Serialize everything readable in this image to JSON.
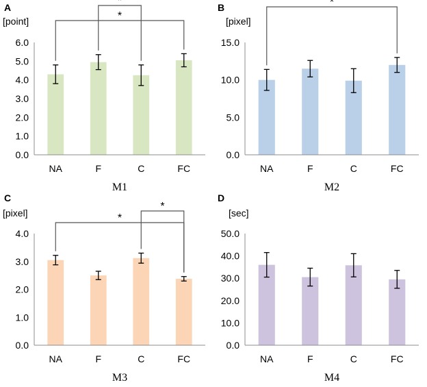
{
  "chart_data": [
    {
      "type": "bar",
      "panel": "A",
      "title": "M1",
      "ylabel": "[point]",
      "ylim": [
        0,
        6
      ],
      "yticks": [
        "0.0",
        "1.0",
        "2.0",
        "3.0",
        "4.0",
        "5.0",
        "6.0"
      ],
      "categories": [
        "NA",
        "F",
        "C",
        "FC"
      ],
      "values": [
        4.3,
        4.95,
        4.25,
        5.05
      ],
      "errors": [
        0.5,
        0.4,
        0.55,
        0.35
      ],
      "color": "#d9e6c2",
      "significance": [
        {
          "from": "NA",
          "to": "FC",
          "label": "*"
        },
        {
          "from": "F",
          "to": "C",
          "label": "*"
        }
      ]
    },
    {
      "type": "bar",
      "panel": "B",
      "title": "M2",
      "ylabel": "[pixel]",
      "ylim": [
        0,
        15
      ],
      "yticks": [
        "0.0",
        "5.0",
        "10.0",
        "15.0"
      ],
      "categories": [
        "NA",
        "F",
        "C",
        "FC"
      ],
      "values": [
        10.0,
        11.5,
        9.9,
        12.0
      ],
      "errors": [
        1.4,
        1.1,
        1.6,
        1.0
      ],
      "color": "#b9d0e8",
      "significance": [
        {
          "from": "NA",
          "to": "FC",
          "label": "*"
        }
      ]
    },
    {
      "type": "bar",
      "panel": "C",
      "title": "M3",
      "ylabel": "[pixel]",
      "ylim": [
        0,
        4
      ],
      "yticks": [
        "0.0",
        "1.0",
        "2.0",
        "3.0",
        "4.0"
      ],
      "categories": [
        "NA",
        "F",
        "C",
        "FC"
      ],
      "values": [
        3.05,
        2.5,
        3.12,
        2.38
      ],
      "errors": [
        0.17,
        0.15,
        0.18,
        0.08
      ],
      "color": "#fbd5b5",
      "significance": [
        {
          "from": "NA",
          "to": "FC",
          "label": "*"
        },
        {
          "from": "C",
          "to": "FC",
          "label": "*"
        }
      ]
    },
    {
      "type": "bar",
      "panel": "D",
      "title": "M4",
      "ylabel": "[sec]",
      "ylim": [
        0,
        50
      ],
      "yticks": [
        "0.0",
        "10.0",
        "20.0",
        "30.0",
        "40.0",
        "50.0"
      ],
      "categories": [
        "NA",
        "F",
        "C",
        "FC"
      ],
      "values": [
        36.0,
        30.5,
        35.8,
        29.5
      ],
      "errors": [
        5.5,
        4.0,
        5.2,
        4.0
      ],
      "color": "#cec3de",
      "significance": []
    }
  ]
}
